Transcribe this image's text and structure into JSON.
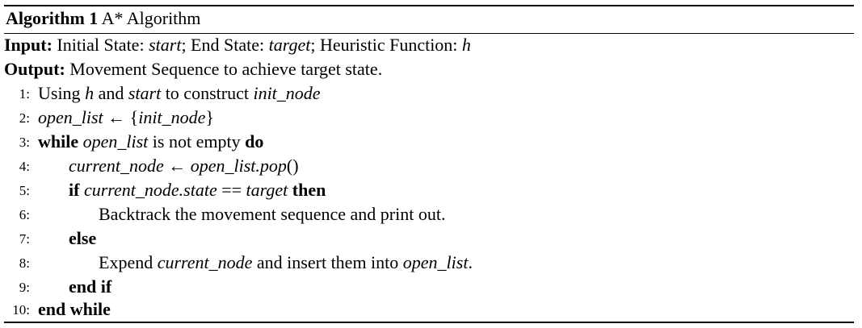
{
  "algorithm": {
    "label": "Algorithm 1",
    "title": "A* Algorithm"
  },
  "input": {
    "keyword": "Input:",
    "initial_label": "Initial State: ",
    "start_var": "start",
    "end_label": "; End State: ",
    "target_var": "target",
    "heuristic_label": "; Heuristic Function: ",
    "h_var": "h"
  },
  "output": {
    "keyword": "Output:",
    "text": "Movement Sequence to achieve target state."
  },
  "lines": [
    {
      "num": "1:",
      "p1": "Using ",
      "v1": "h",
      "p2": " and ",
      "v2": "start",
      "p3": " to construct ",
      "v3": "init_node"
    },
    {
      "num": "2:",
      "v1": "open_list",
      "p1": " ← {",
      "v2": "init_node",
      "p2": "}"
    },
    {
      "num": "3:",
      "k1": "while",
      "v1": "open_list",
      "p1": " is not empty ",
      "k2": "do"
    },
    {
      "num": "4:",
      "v1": "current_node",
      "p1": " ← ",
      "v2": "open_list.pop",
      "p2": "()"
    },
    {
      "num": "5:",
      "k1": "if",
      "v1": "current_node.state",
      "p1": " == ",
      "v2": "target",
      "k2": "then"
    },
    {
      "num": "6:",
      "text": "Backtrack the movement sequence and print out."
    },
    {
      "num": "7:",
      "k1": "else"
    },
    {
      "num": "8:",
      "p1": "Expend ",
      "v1": "current_node",
      "p2": " and insert them into ",
      "v2": "open_list",
      "p3": "."
    },
    {
      "num": "9:",
      "k1": "end if"
    },
    {
      "num": "10:",
      "k1": "end while"
    }
  ]
}
